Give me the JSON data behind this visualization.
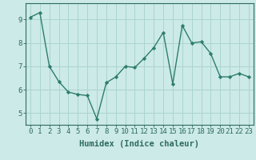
{
  "x": [
    0,
    1,
    2,
    3,
    4,
    5,
    6,
    7,
    8,
    9,
    10,
    11,
    12,
    13,
    14,
    15,
    16,
    17,
    18,
    19,
    20,
    21,
    22,
    23
  ],
  "y": [
    9.1,
    9.3,
    7.0,
    6.35,
    5.9,
    5.8,
    5.75,
    4.75,
    6.3,
    6.55,
    7.0,
    6.95,
    7.35,
    7.8,
    8.45,
    6.25,
    8.75,
    8.0,
    8.05,
    7.55,
    6.55,
    6.55,
    6.7,
    6.55
  ],
  "line_color": "#2e7d6e",
  "marker": "D",
  "marker_size": 2.2,
  "bg_color": "#cceae8",
  "grid_color": "#aad4d0",
  "xlabel": "Humidex (Indice chaleur)",
  "xlim": [
    -0.5,
    23.5
  ],
  "ylim": [
    4.5,
    9.7
  ],
  "yticks": [
    5,
    6,
    7,
    8,
    9
  ],
  "xticks": [
    0,
    1,
    2,
    3,
    4,
    5,
    6,
    7,
    8,
    9,
    10,
    11,
    12,
    13,
    14,
    15,
    16,
    17,
    18,
    19,
    20,
    21,
    22,
    23
  ],
  "tick_color": "#2e6b5e",
  "axis_color": "#2e6b5e",
  "xlabel_fontsize": 7.5,
  "tick_fontsize": 6.5,
  "linewidth": 1.0
}
